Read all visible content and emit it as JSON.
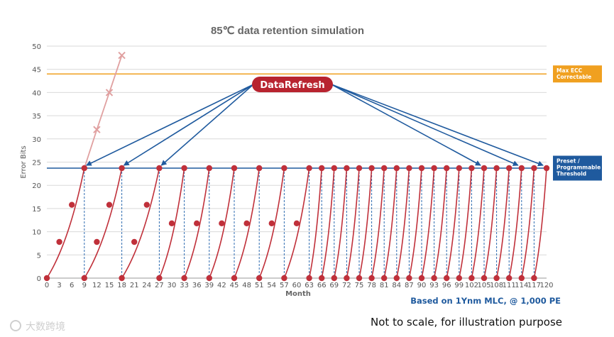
{
  "chart_data": {
    "type": "line",
    "title": "85℃ data retention simulation",
    "xlabel": "Month",
    "ylabel": "Error Bits",
    "xlim": [
      0,
      120
    ],
    "ylim": [
      0,
      50
    ],
    "x_ticks": [
      0,
      3,
      6,
      9,
      12,
      15,
      18,
      21,
      24,
      27,
      30,
      33,
      36,
      39,
      42,
      45,
      48,
      51,
      54,
      57,
      60,
      63,
      66,
      69,
      72,
      75,
      78,
      81,
      84,
      87,
      90,
      93,
      96,
      99,
      102,
      105,
      108,
      111,
      114,
      117,
      120
    ],
    "y_ticks": [
      0,
      5,
      10,
      15,
      20,
      25,
      30,
      35,
      40,
      45,
      50
    ],
    "grid": true,
    "thresholds": [
      {
        "label_lines": [
          "Max ECC",
          "Correctable"
        ],
        "y": 44,
        "color": "#f0a020"
      },
      {
        "label_lines": [
          "Preset /",
          "Programmable",
          "Threshold"
        ],
        "y": 23.7,
        "color": "#1f5a9e"
      }
    ],
    "no_refresh_curve": {
      "color": "#e0a0a0",
      "points": [
        [
          9,
          23.7
        ],
        [
          12,
          32
        ],
        [
          15,
          40
        ],
        [
          18,
          48
        ]
      ]
    },
    "refresh_cycles": [
      {
        "start": 0,
        "end": 9,
        "points": [
          [
            0,
            0
          ],
          [
            3,
            7.8
          ],
          [
            6,
            15.8
          ],
          [
            9,
            23.7
          ]
        ]
      },
      {
        "start": 9,
        "end": 18,
        "points": [
          [
            9,
            0
          ],
          [
            12,
            7.8
          ],
          [
            15,
            15.8
          ],
          [
            18,
            23.7
          ]
        ]
      },
      {
        "start": 18,
        "end": 27,
        "points": [
          [
            18,
            0
          ],
          [
            21,
            7.8
          ],
          [
            24,
            15.8
          ],
          [
            27,
            23.7
          ]
        ]
      },
      {
        "start": 27,
        "end": 33,
        "points": [
          [
            27,
            0
          ],
          [
            30,
            11.8
          ],
          [
            33,
            23.7
          ]
        ]
      },
      {
        "start": 33,
        "end": 39,
        "points": [
          [
            33,
            0
          ],
          [
            36,
            11.8
          ],
          [
            39,
            23.7
          ]
        ]
      },
      {
        "start": 39,
        "end": 45,
        "points": [
          [
            39,
            0
          ],
          [
            42,
            11.8
          ],
          [
            45,
            23.7
          ]
        ]
      },
      {
        "start": 45,
        "end": 51,
        "points": [
          [
            45,
            0
          ],
          [
            48,
            11.8
          ],
          [
            51,
            23.7
          ]
        ]
      },
      {
        "start": 51,
        "end": 57,
        "points": [
          [
            51,
            0
          ],
          [
            54,
            11.8
          ],
          [
            57,
            23.7
          ]
        ]
      },
      {
        "start": 57,
        "end": 63,
        "points": [
          [
            57,
            0
          ],
          [
            60,
            11.8
          ],
          [
            63,
            23.7
          ]
        ]
      },
      {
        "start": 63,
        "end": 66,
        "points": [
          [
            63,
            0
          ],
          [
            66,
            23.7
          ]
        ]
      },
      {
        "start": 66,
        "end": 69,
        "points": [
          [
            66,
            0
          ],
          [
            69,
            23.7
          ]
        ]
      },
      {
        "start": 69,
        "end": 72,
        "points": [
          [
            69,
            0
          ],
          [
            72,
            23.7
          ]
        ]
      },
      {
        "start": 72,
        "end": 75,
        "points": [
          [
            72,
            0
          ],
          [
            75,
            23.7
          ]
        ]
      },
      {
        "start": 75,
        "end": 78,
        "points": [
          [
            75,
            0
          ],
          [
            78,
            23.7
          ]
        ]
      },
      {
        "start": 78,
        "end": 81,
        "points": [
          [
            78,
            0
          ],
          [
            81,
            23.7
          ]
        ]
      },
      {
        "start": 81,
        "end": 84,
        "points": [
          [
            81,
            0
          ],
          [
            84,
            23.7
          ]
        ]
      },
      {
        "start": 84,
        "end": 87,
        "points": [
          [
            84,
            0
          ],
          [
            87,
            23.7
          ]
        ]
      },
      {
        "start": 87,
        "end": 90,
        "points": [
          [
            87,
            0
          ],
          [
            90,
            23.7
          ]
        ]
      },
      {
        "start": 90,
        "end": 93,
        "points": [
          [
            90,
            0
          ],
          [
            93,
            23.7
          ]
        ]
      },
      {
        "start": 93,
        "end": 96,
        "points": [
          [
            93,
            0
          ],
          [
            96,
            23.7
          ]
        ]
      },
      {
        "start": 96,
        "end": 99,
        "points": [
          [
            96,
            0
          ],
          [
            99,
            23.7
          ]
        ]
      },
      {
        "start": 99,
        "end": 102,
        "points": [
          [
            99,
            0
          ],
          [
            102,
            23.7
          ]
        ]
      },
      {
        "start": 102,
        "end": 105,
        "points": [
          [
            102,
            0
          ],
          [
            105,
            23.7
          ]
        ]
      },
      {
        "start": 105,
        "end": 108,
        "points": [
          [
            105,
            0
          ],
          [
            108,
            23.7
          ]
        ]
      },
      {
        "start": 108,
        "end": 111,
        "points": [
          [
            108,
            0
          ],
          [
            111,
            23.7
          ]
        ]
      },
      {
        "start": 111,
        "end": 114,
        "points": [
          [
            111,
            0
          ],
          [
            114,
            23.7
          ]
        ]
      },
      {
        "start": 114,
        "end": 117,
        "points": [
          [
            114,
            0
          ],
          [
            117,
            23.7
          ]
        ]
      },
      {
        "start": 117,
        "end": 120,
        "points": [
          [
            117,
            0
          ],
          [
            120,
            23.7
          ]
        ]
      }
    ],
    "data_refresh_label": "DataRefresh",
    "data_refresh_targets": [
      9,
      18,
      27,
      105,
      114,
      120
    ],
    "annotation_basis": "Based on 1Ynm MLC, @ 1,000 PE",
    "annotation_note": "Not to scale, for illustration purpose",
    "colors": {
      "curve": "#c0303a",
      "drop": "#2e6bb0",
      "refresh_badge": "#b8232f",
      "arrow": "#1f5a9e"
    }
  },
  "watermark": "大数跨境"
}
